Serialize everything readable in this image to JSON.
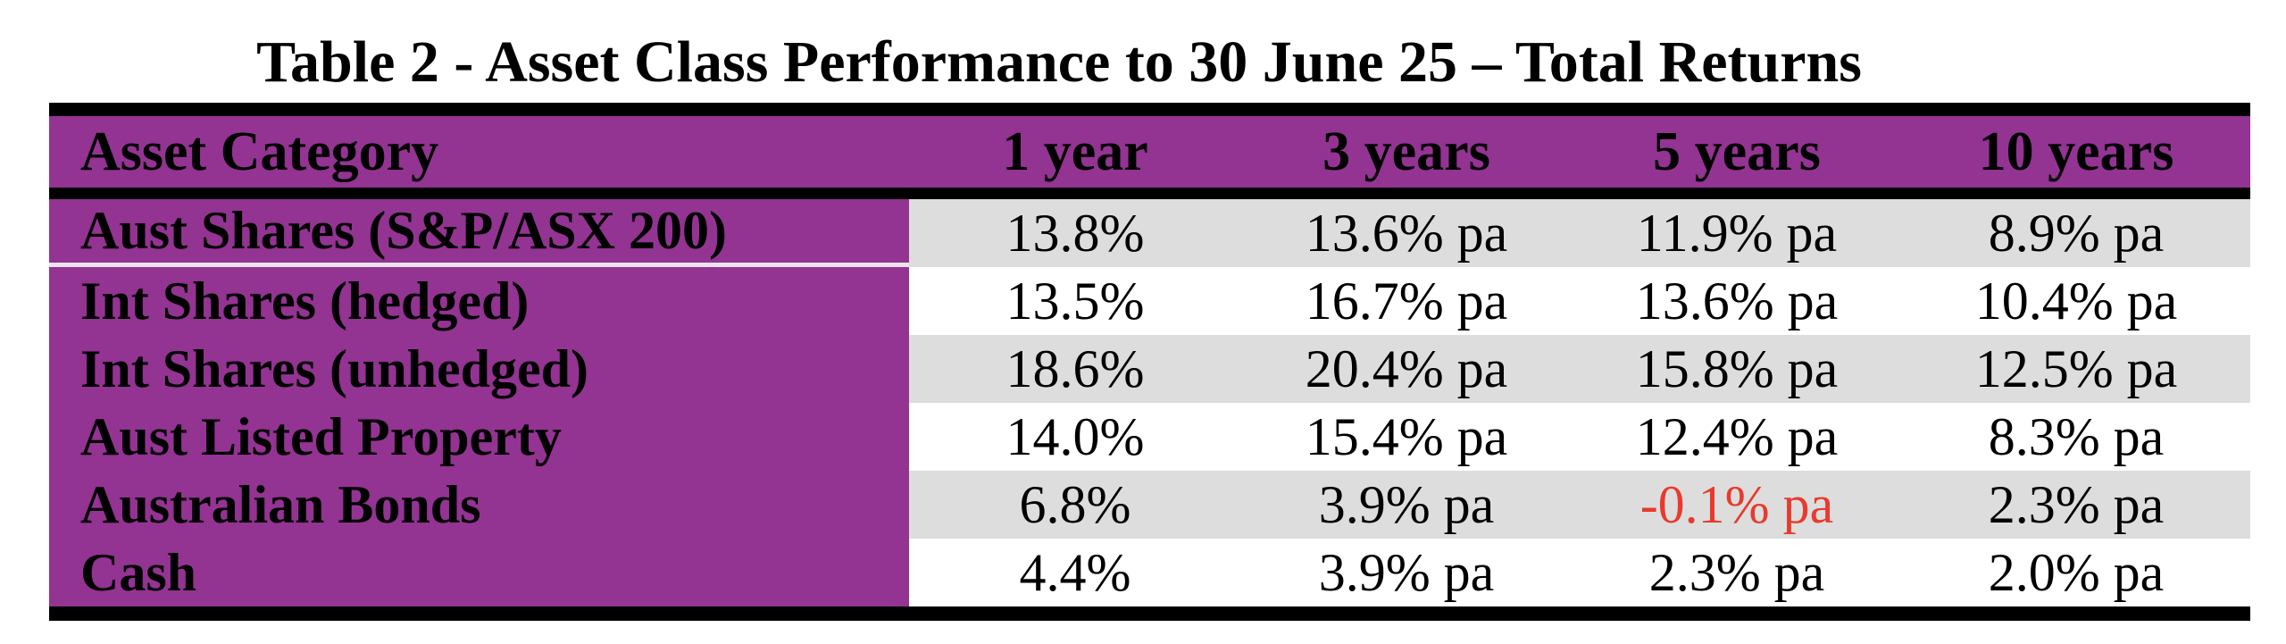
{
  "title": "Table 2 - Asset Class Performance to 30 June 25 – Total Returns",
  "table": {
    "columns": [
      "Asset Category",
      "1 year",
      "3 years",
      "5 years",
      "10 years"
    ],
    "rows": [
      {
        "category": "Aust Shares (S&P/ASX 200)",
        "values": [
          "13.8%",
          "13.6% pa",
          "11.9% pa",
          "8.9% pa"
        ]
      },
      {
        "category": "Int Shares (hedged)",
        "values": [
          "13.5%",
          "16.7% pa",
          "13.6% pa",
          "10.4% pa"
        ]
      },
      {
        "category": "Int Shares (unhedged)",
        "values": [
          "18.6%",
          "20.4% pa",
          "15.8% pa",
          "12.5% pa"
        ]
      },
      {
        "category": "Aust Listed Property",
        "values": [
          "14.0%",
          "15.4% pa",
          "12.4% pa",
          "8.3% pa"
        ]
      },
      {
        "category": "Australian Bonds",
        "values": [
          "6.8%",
          "3.9% pa",
          "-0.1% pa",
          "2.3% pa"
        ]
      },
      {
        "category": "Cash",
        "values": [
          "4.4%",
          "3.9% pa",
          "2.3% pa",
          "2.0% pa"
        ]
      }
    ],
    "colors": {
      "header_bg": "#933392",
      "stripe_bg": "#DDDDDD",
      "negative_value": "#E83A2D",
      "border": "#000000"
    }
  }
}
